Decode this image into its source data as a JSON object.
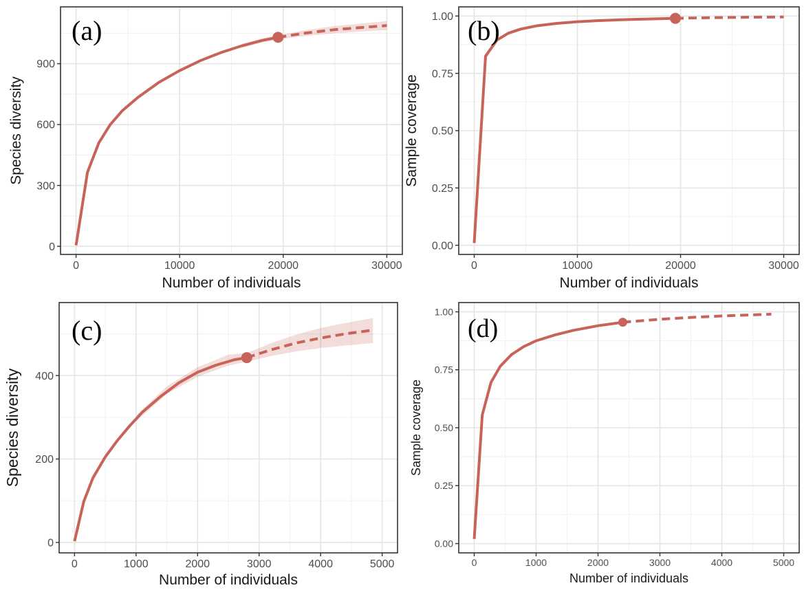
{
  "colors": {
    "series": "#c8635a",
    "ribbon": "#c8635a",
    "grid_major": "#e4e4e4",
    "grid_minor": "#f2f2f2",
    "frame": "#333333"
  },
  "chart_data": [
    {
      "type": "line",
      "panel": "(a)",
      "xlabel": "Number of individuals",
      "ylabel": "Species diversity",
      "xlim": [
        -1500,
        31500
      ],
      "ylim": [
        -40,
        1180
      ],
      "xticks": [
        0,
        10000,
        20000,
        30000
      ],
      "yticks": [
        0,
        300,
        600,
        900
      ],
      "grid": true,
      "observed_point": {
        "x": 19500,
        "y": 1030
      },
      "series": [
        {
          "style": "solid",
          "points": [
            [
              0,
              5
            ],
            [
              1100,
              365
            ],
            [
              2200,
              510
            ],
            [
              3300,
              600
            ],
            [
              4500,
              670
            ],
            [
              6000,
              735
            ],
            [
              8000,
              808
            ],
            [
              10000,
              866
            ],
            [
              12000,
              915
            ],
            [
              14000,
              955
            ],
            [
              16000,
              988
            ],
            [
              18000,
              1015
            ],
            [
              19500,
              1030
            ]
          ]
        },
        {
          "style": "dashed",
          "points": [
            [
              19500,
              1030
            ],
            [
              22000,
              1050
            ],
            [
              25000,
              1068
            ],
            [
              28000,
              1080
            ],
            [
              30000,
              1088
            ]
          ]
        }
      ],
      "ribbon": [
        [
          16000,
          978,
          998
        ],
        [
          18000,
          1005,
          1025
        ],
        [
          19500,
          1020,
          1040
        ],
        [
          22000,
          1036,
          1064
        ],
        [
          25000,
          1050,
          1086
        ],
        [
          28000,
          1060,
          1100
        ],
        [
          30000,
          1066,
          1110
        ]
      ]
    },
    {
      "type": "line",
      "panel": "(b)",
      "xlabel": "Number of individuals",
      "ylabel": "Sample coverage",
      "xlim": [
        -1500,
        31500
      ],
      "ylim": [
        -0.04,
        1.04
      ],
      "xticks": [
        0,
        10000,
        20000,
        30000
      ],
      "yticks": [
        0.0,
        0.25,
        0.5,
        0.75,
        1.0
      ],
      "tick_labels_y": [
        "0.00",
        "0.25",
        "0.50",
        "0.75",
        "1.00"
      ],
      "grid": true,
      "observed_point": {
        "x": 19500,
        "y": 0.99
      },
      "series": [
        {
          "style": "solid",
          "points": [
            [
              0,
              0.01
            ],
            [
              1100,
              0.825
            ],
            [
              2200,
              0.895
            ],
            [
              3300,
              0.925
            ],
            [
              4500,
              0.943
            ],
            [
              6000,
              0.957
            ],
            [
              8000,
              0.968
            ],
            [
              10000,
              0.975
            ],
            [
              12000,
              0.98
            ],
            [
              15000,
              0.985
            ],
            [
              19500,
              0.99
            ]
          ]
        },
        {
          "style": "dashed",
          "points": [
            [
              19500,
              0.99
            ],
            [
              23000,
              0.993
            ],
            [
              27000,
              0.995
            ],
            [
              30000,
              0.996
            ]
          ]
        }
      ]
    },
    {
      "type": "line",
      "panel": "(c)",
      "xlabel": "Number of individuals",
      "ylabel": "Species diversity",
      "xlim": [
        -250,
        5250
      ],
      "ylim": [
        -25,
        575
      ],
      "xticks": [
        0,
        1000,
        2000,
        3000,
        4000,
        5000
      ],
      "yticks": [
        0,
        200,
        400
      ],
      "grid": true,
      "observed_point": {
        "x": 2800,
        "y": 443
      },
      "series": [
        {
          "style": "solid",
          "points": [
            [
              0,
              3
            ],
            [
              150,
              98
            ],
            [
              300,
              155
            ],
            [
              500,
              205
            ],
            [
              700,
              245
            ],
            [
              900,
              280
            ],
            [
              1100,
              312
            ],
            [
              1400,
              350
            ],
            [
              1700,
              383
            ],
            [
              2000,
              408
            ],
            [
              2300,
              425
            ],
            [
              2600,
              438
            ],
            [
              2800,
              443
            ]
          ]
        },
        {
          "style": "dashed",
          "points": [
            [
              2800,
              443
            ],
            [
              3200,
              462
            ],
            [
              3600,
              478
            ],
            [
              4000,
              490
            ],
            [
              4400,
              500
            ],
            [
              4850,
              509
            ]
          ]
        }
      ],
      "ribbon": [
        [
          1000,
          290,
          304
        ],
        [
          1500,
          356,
          374
        ],
        [
          2000,
          397,
          420
        ],
        [
          2500,
          424,
          450
        ],
        [
          2800,
          433,
          454
        ],
        [
          3200,
          447,
          478
        ],
        [
          3600,
          458,
          498
        ],
        [
          4000,
          466,
          514
        ],
        [
          4400,
          472,
          526
        ],
        [
          4850,
          478,
          538
        ]
      ]
    },
    {
      "type": "line",
      "panel": "(d)",
      "xlabel": "Number of individuals",
      "ylabel": "Sample coverage",
      "xlim": [
        -250,
        5250
      ],
      "ylim": [
        -0.04,
        1.04
      ],
      "xticks": [
        0,
        1000,
        2000,
        3000,
        4000,
        5000
      ],
      "yticks": [
        0.0,
        0.25,
        0.5,
        0.75,
        1.0
      ],
      "tick_labels_y": [
        "0.00",
        "0.25",
        "0.50",
        "0.75",
        "1.00"
      ],
      "grid": true,
      "observed_point": {
        "x": 2400,
        "y": 0.955
      },
      "series": [
        {
          "style": "solid",
          "points": [
            [
              0,
              0.02
            ],
            [
              130,
              0.555
            ],
            [
              270,
              0.695
            ],
            [
              420,
              0.765
            ],
            [
              600,
              0.815
            ],
            [
              800,
              0.85
            ],
            [
              1000,
              0.875
            ],
            [
              1300,
              0.9
            ],
            [
              1600,
              0.92
            ],
            [
              2000,
              0.94
            ],
            [
              2400,
              0.955
            ]
          ]
        },
        {
          "style": "dashed",
          "points": [
            [
              2400,
              0.955
            ],
            [
              3000,
              0.968
            ],
            [
              3500,
              0.976
            ],
            [
              4000,
              0.982
            ],
            [
              4500,
              0.987
            ],
            [
              4800,
              0.99
            ]
          ]
        }
      ]
    }
  ]
}
